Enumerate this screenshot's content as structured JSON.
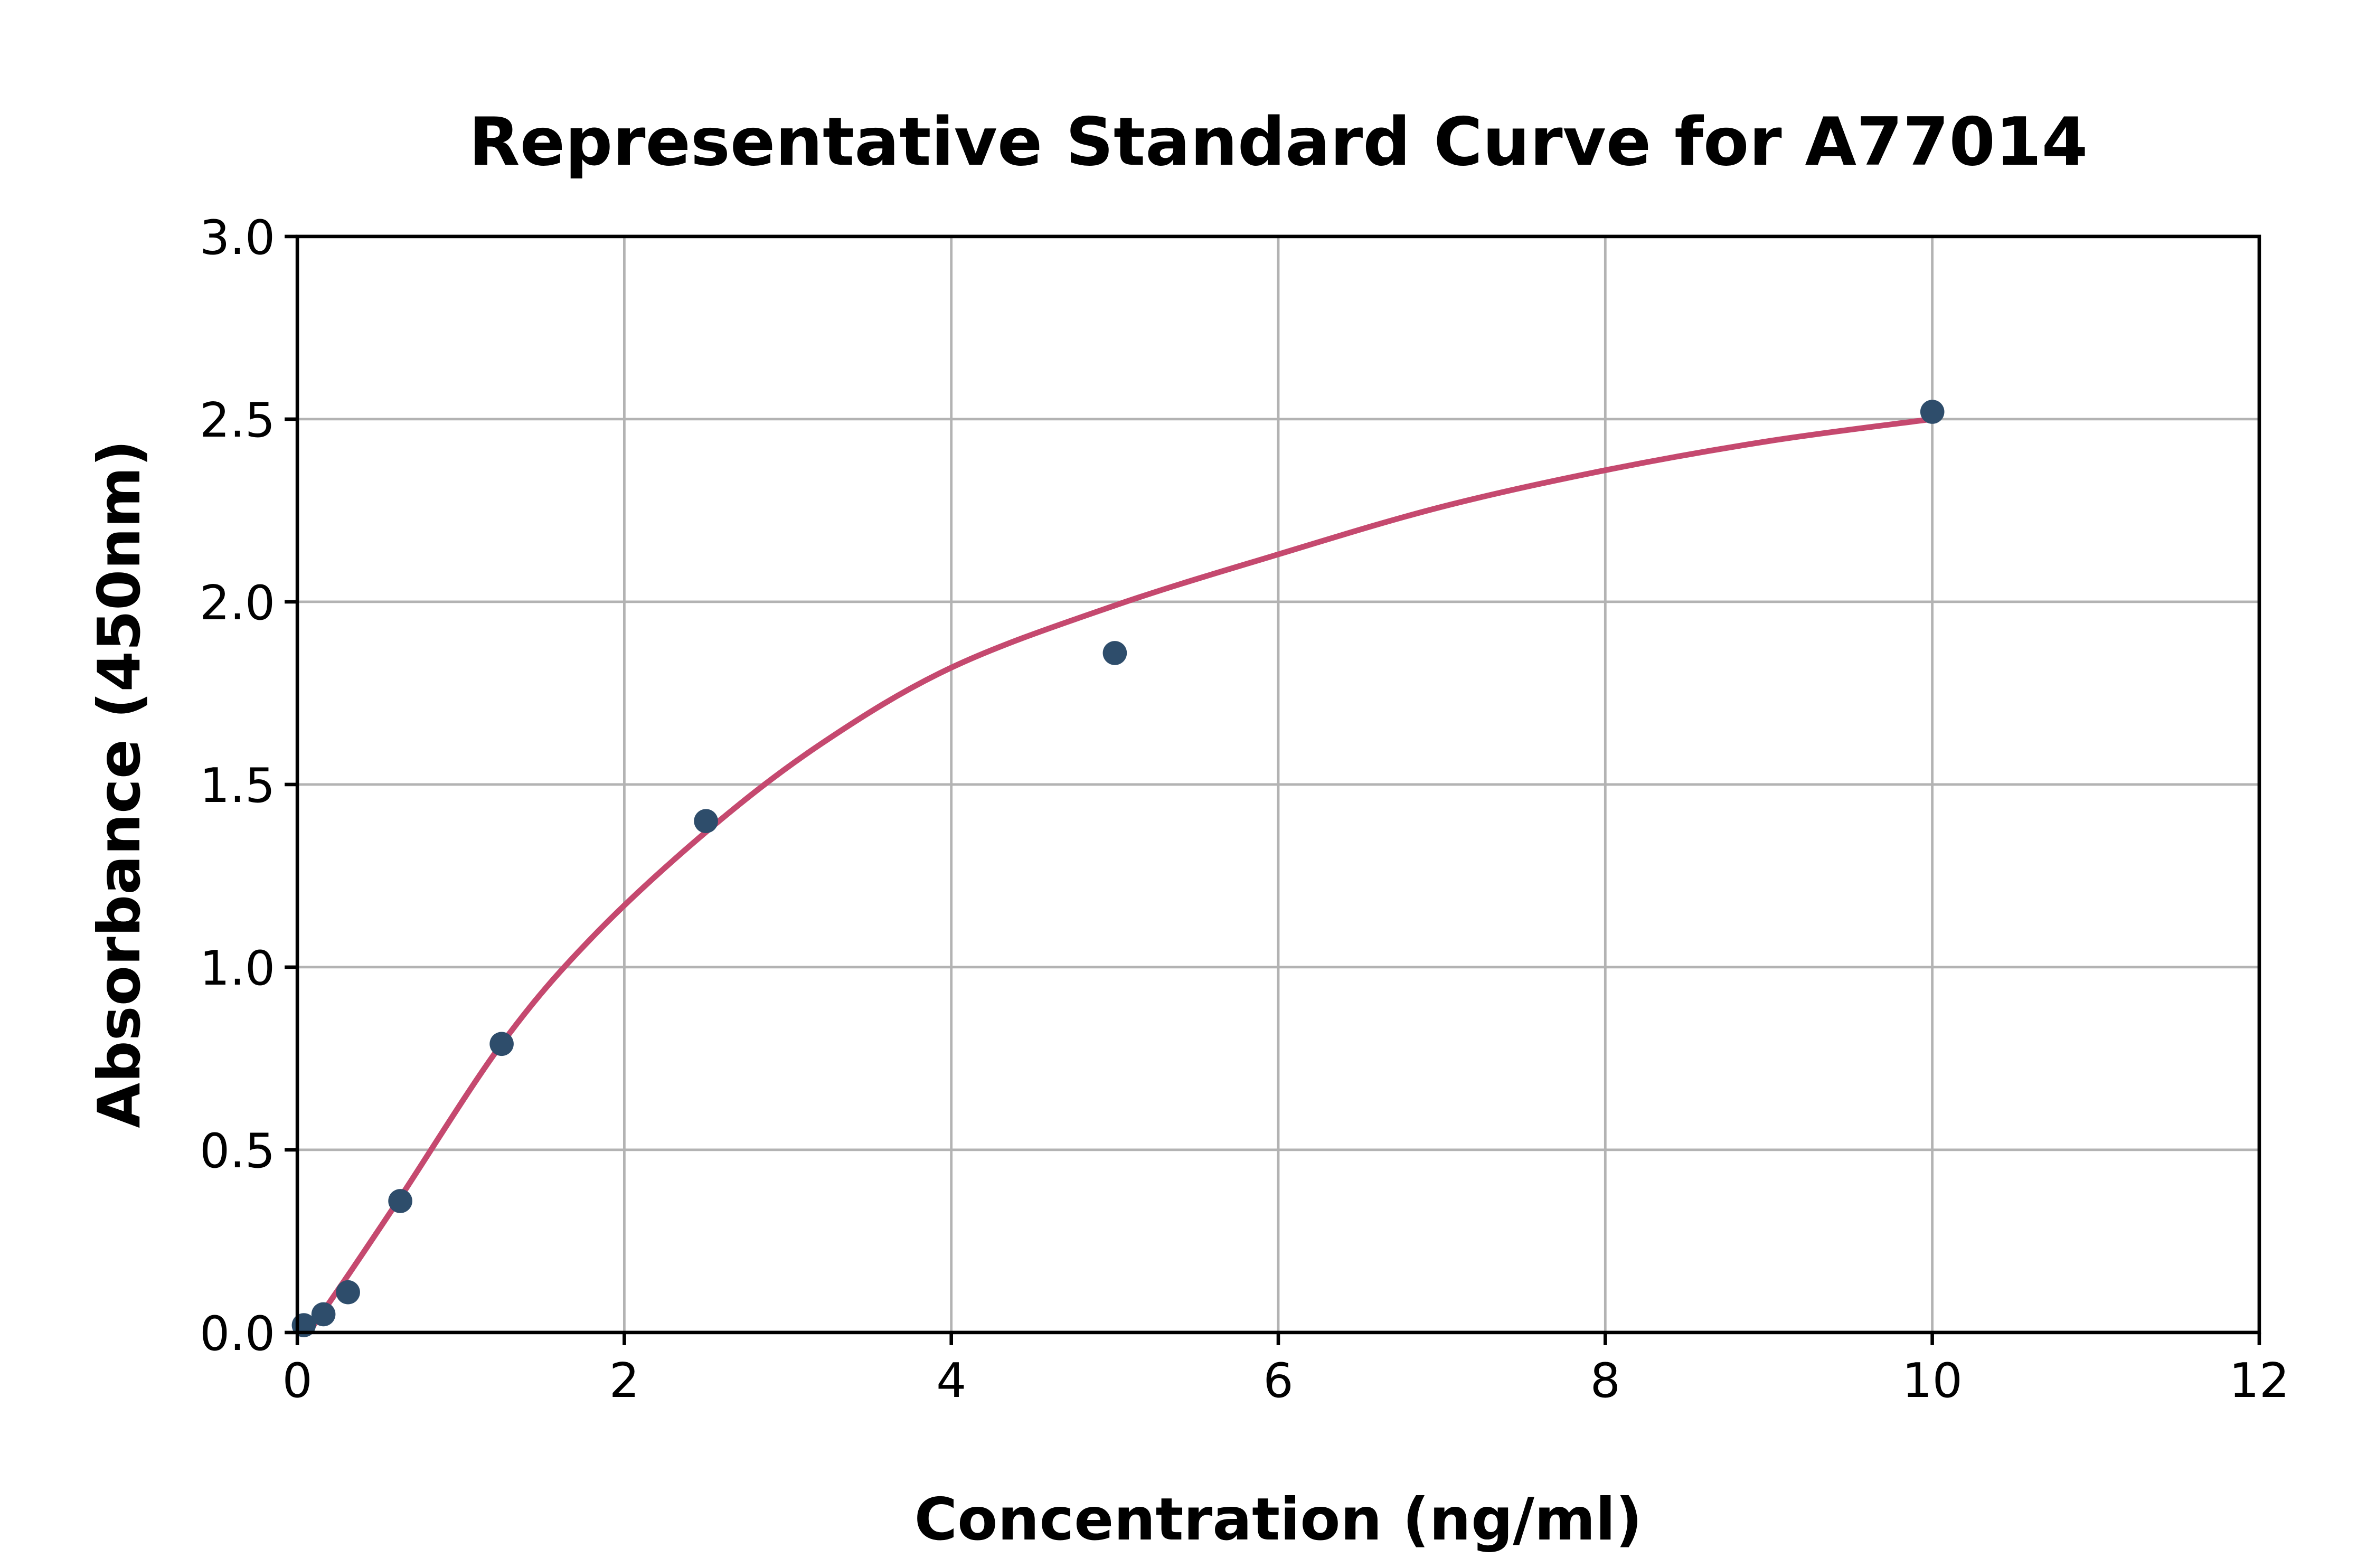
{
  "figure": {
    "background": "#ffffff"
  },
  "chart_data": {
    "type": "scatter",
    "title": "Representative Standard Curve for A77014",
    "xlabel": "Concentration (ng/ml)",
    "ylabel": "Absorbance (450nm)",
    "xlim": [
      0,
      12
    ],
    "ylim": [
      0,
      3
    ],
    "xticks": [
      0,
      2,
      4,
      6,
      8,
      10,
      12
    ],
    "xtick_labels": [
      "0",
      "2",
      "4",
      "6",
      "8",
      "10",
      "12"
    ],
    "yticks": [
      0,
      0.5,
      1,
      1.5,
      2,
      2.5,
      3
    ],
    "ytick_labels": [
      "0.0",
      "0.5",
      "1.0",
      "1.5",
      "2.0",
      "2.5",
      "3.0"
    ],
    "grid": true,
    "legend": false,
    "series": [
      {
        "name": "standard-points",
        "type": "scatter",
        "color": "#2e4d6b",
        "points": [
          [
            0.04,
            0.02
          ],
          [
            0.16,
            0.05
          ],
          [
            0.31,
            0.11
          ],
          [
            0.63,
            0.36
          ],
          [
            1.25,
            0.79
          ],
          [
            2.5,
            1.4
          ],
          [
            5.0,
            1.86
          ],
          [
            10.0,
            2.52
          ]
        ]
      },
      {
        "name": "fitted-curve",
        "type": "line",
        "color": "#c5496f",
        "points": [
          [
            0.07,
            0.0
          ],
          [
            0.3,
            0.15
          ],
          [
            0.63,
            0.37
          ],
          [
            1.25,
            0.79
          ],
          [
            1.8,
            1.08
          ],
          [
            2.5,
            1.37
          ],
          [
            3.2,
            1.61
          ],
          [
            4.0,
            1.82
          ],
          [
            5.0,
            1.99
          ],
          [
            6.0,
            2.13
          ],
          [
            7.0,
            2.26
          ],
          [
            8.0,
            2.36
          ],
          [
            9.0,
            2.44
          ],
          [
            10.0,
            2.5
          ]
        ]
      }
    ],
    "colors": {
      "background": "#ffffff",
      "axis": "#000000",
      "gridline": "#b3b3b3",
      "text": "#000000"
    }
  }
}
